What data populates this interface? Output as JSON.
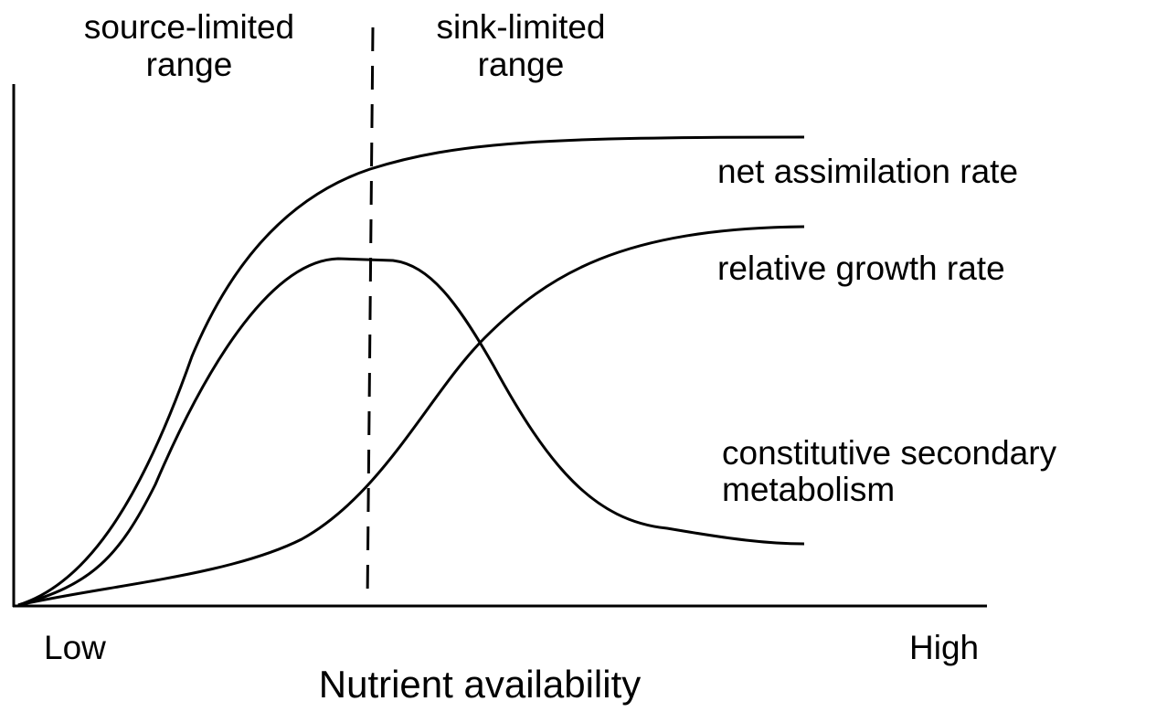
{
  "regions": [
    {
      "lines": [
        "source-limited",
        "range"
      ]
    },
    {
      "lines": [
        "sink-limited",
        "range"
      ]
    }
  ],
  "curves": [
    {
      "label": [
        "net assimilation rate"
      ]
    },
    {
      "label": [
        "relative growth rate"
      ]
    },
    {
      "label": [
        "constitutive secondary",
        "metabolism"
      ]
    }
  ],
  "x_axis": {
    "low": "Low",
    "high": "High",
    "title": "Nutrient availability"
  }
}
